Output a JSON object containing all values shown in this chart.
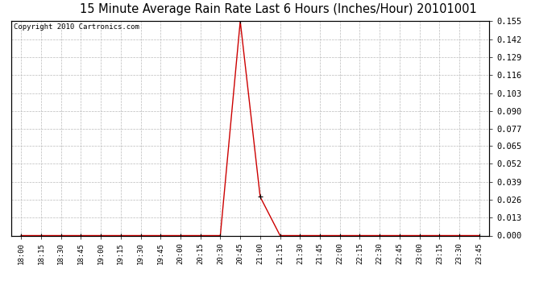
{
  "title": "15 Minute Average Rain Rate Last 6 Hours (Inches/Hour) 20101001",
  "copyright_text": "Copyright 2010 Cartronics.com",
  "background_color": "#ffffff",
  "plot_bg_color": "#ffffff",
  "line_color": "#cc0000",
  "marker_color": "#000000",
  "grid_color": "#bbbbbb",
  "x_labels": [
    "18:00",
    "18:15",
    "18:30",
    "18:45",
    "19:00",
    "19:15",
    "19:30",
    "19:45",
    "20:00",
    "20:15",
    "20:30",
    "20:45",
    "21:00",
    "21:15",
    "21:30",
    "21:45",
    "22:00",
    "22:15",
    "22:30",
    "22:45",
    "23:00",
    "23:15",
    "23:30",
    "23:45"
  ],
  "y_ticks": [
    0.0,
    0.013,
    0.026,
    0.039,
    0.052,
    0.065,
    0.077,
    0.09,
    0.103,
    0.116,
    0.129,
    0.142,
    0.155
  ],
  "ylim": [
    0.0,
    0.155
  ],
  "data_values": [
    0.0,
    0.0,
    0.0,
    0.0,
    0.0,
    0.0,
    0.0,
    0.0,
    0.0,
    0.0,
    0.0,
    0.155,
    0.028,
    0.0,
    0.0,
    0.0,
    0.0,
    0.0,
    0.0,
    0.0,
    0.0,
    0.0,
    0.0,
    0.0
  ],
  "title_fontsize": 10.5,
  "copyright_fontsize": 6.5,
  "tick_fontsize": 6.5,
  "ytick_fontsize": 7.5
}
